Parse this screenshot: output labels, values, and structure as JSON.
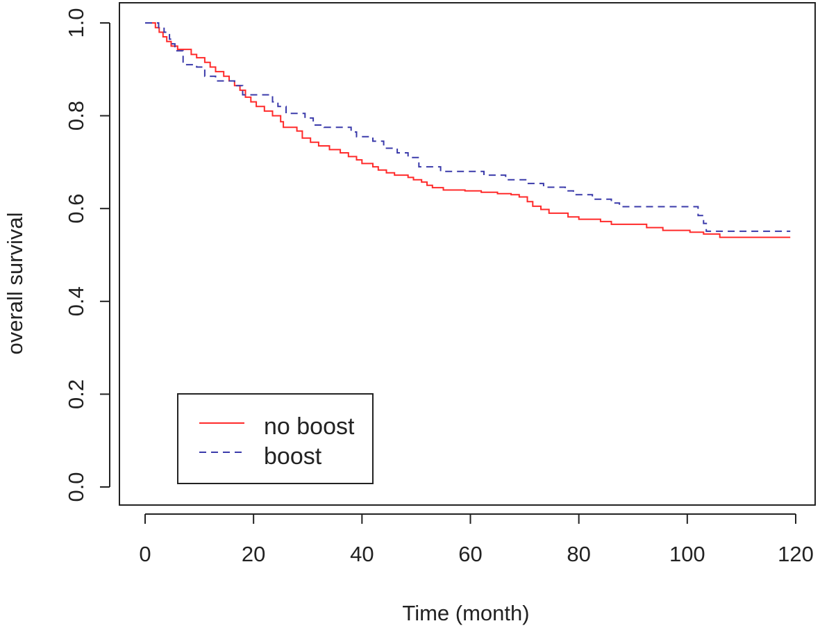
{
  "chart_data": {
    "type": "line",
    "title": "",
    "xlabel": "Time (month)",
    "ylabel": "overall survival",
    "xlim": [
      0,
      120
    ],
    "ylim": [
      0,
      1.0
    ],
    "x_ticks": [
      0,
      20,
      40,
      60,
      80,
      100,
      120
    ],
    "x_tick_labels": [
      "0",
      "20",
      "40",
      "60",
      "80",
      "100",
      "120"
    ],
    "y_ticks": [
      0,
      0.2,
      0.4,
      0.6,
      0.8,
      1.0
    ],
    "y_tick_labels": [
      "0.0",
      "0.2",
      "0.4",
      "0.6",
      "0.8",
      "1.0"
    ],
    "grid": false,
    "legend_position": "bottom-left",
    "series": [
      {
        "name": "no boost",
        "color": "#ff2a2a",
        "dash": "solid",
        "steps": [
          [
            0,
            1.0
          ],
          [
            1.9,
            0.99
          ],
          [
            2.6,
            0.98
          ],
          [
            3.3,
            0.97
          ],
          [
            4.0,
            0.96
          ],
          [
            4.8,
            0.95
          ],
          [
            6.0,
            0.943
          ],
          [
            8.5,
            0.932
          ],
          [
            9.5,
            0.925
          ],
          [
            11.0,
            0.915
          ],
          [
            12.0,
            0.905
          ],
          [
            13.0,
            0.895
          ],
          [
            14.5,
            0.885
          ],
          [
            15.5,
            0.875
          ],
          [
            16.5,
            0.865
          ],
          [
            17.5,
            0.855
          ],
          [
            18.5,
            0.84
          ],
          [
            19.5,
            0.83
          ],
          [
            20.5,
            0.82
          ],
          [
            22.0,
            0.81
          ],
          [
            23.5,
            0.8
          ],
          [
            25.0,
            0.787
          ],
          [
            25.5,
            0.775
          ],
          [
            28.0,
            0.767
          ],
          [
            29.0,
            0.752
          ],
          [
            30.5,
            0.743
          ],
          [
            32.0,
            0.735
          ],
          [
            34.0,
            0.727
          ],
          [
            36.0,
            0.72
          ],
          [
            37.5,
            0.712
          ],
          [
            39.0,
            0.705
          ],
          [
            40.0,
            0.697
          ],
          [
            42.0,
            0.69
          ],
          [
            43.0,
            0.683
          ],
          [
            44.5,
            0.677
          ],
          [
            46.0,
            0.672
          ],
          [
            48.5,
            0.667
          ],
          [
            49.5,
            0.662
          ],
          [
            51.0,
            0.657
          ],
          [
            52.0,
            0.65
          ],
          [
            53.0,
            0.645
          ],
          [
            55.0,
            0.64
          ],
          [
            59.0,
            0.638
          ],
          [
            62.0,
            0.635
          ],
          [
            65.0,
            0.632
          ],
          [
            67.5,
            0.63
          ],
          [
            69.0,
            0.625
          ],
          [
            70.5,
            0.615
          ],
          [
            71.5,
            0.605
          ],
          [
            73.0,
            0.598
          ],
          [
            74.5,
            0.59
          ],
          [
            78.0,
            0.582
          ],
          [
            80.0,
            0.577
          ],
          [
            84.0,
            0.572
          ],
          [
            86.0,
            0.566
          ],
          [
            92.5,
            0.559
          ],
          [
            95.5,
            0.553
          ],
          [
            100.5,
            0.549
          ],
          [
            103.0,
            0.545
          ],
          [
            106.0,
            0.538
          ],
          [
            119.0,
            0.538
          ]
        ]
      },
      {
        "name": "boost",
        "color": "#3a3aaa",
        "dash": "dashed",
        "steps": [
          [
            0,
            1.0
          ],
          [
            2.5,
            0.99
          ],
          [
            3.5,
            0.98
          ],
          [
            4.5,
            0.965
          ],
          [
            5.0,
            0.955
          ],
          [
            5.5,
            0.94
          ],
          [
            7.0,
            0.91
          ],
          [
            9.5,
            0.905
          ],
          [
            11.0,
            0.885
          ],
          [
            13.0,
            0.875
          ],
          [
            16.5,
            0.865
          ],
          [
            18.0,
            0.845
          ],
          [
            21.5,
            0.845
          ],
          [
            23.5,
            0.83
          ],
          [
            24.5,
            0.82
          ],
          [
            26.0,
            0.805
          ],
          [
            29.5,
            0.795
          ],
          [
            31.0,
            0.78
          ],
          [
            33.0,
            0.775
          ],
          [
            38.0,
            0.765
          ],
          [
            39.0,
            0.755
          ],
          [
            42.0,
            0.745
          ],
          [
            44.0,
            0.73
          ],
          [
            46.5,
            0.72
          ],
          [
            48.5,
            0.71
          ],
          [
            50.5,
            0.69
          ],
          [
            54.5,
            0.68
          ],
          [
            62.5,
            0.672
          ],
          [
            66.5,
            0.662
          ],
          [
            70.5,
            0.654
          ],
          [
            73.5,
            0.646
          ],
          [
            77.5,
            0.638
          ],
          [
            79.0,
            0.63
          ],
          [
            82.5,
            0.62
          ],
          [
            86.0,
            0.612
          ],
          [
            87.5,
            0.604
          ],
          [
            101.0,
            0.604
          ],
          [
            102.0,
            0.585
          ],
          [
            103.0,
            0.568
          ],
          [
            103.5,
            0.551
          ],
          [
            119.0,
            0.551
          ]
        ]
      }
    ]
  }
}
